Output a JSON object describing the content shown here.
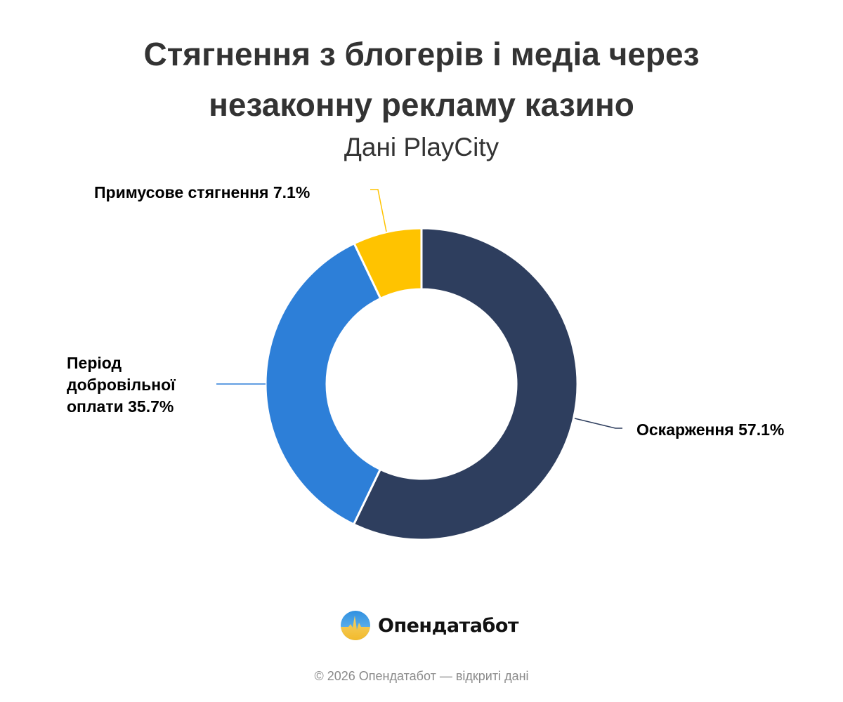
{
  "header": {
    "title_line1": "Стягнення з блогерів і медіа через",
    "title_line2": "незаконну рекламу казино",
    "subtitle": "Дані PlayCity"
  },
  "labels": {
    "navy": "Оскарження 57.1%",
    "blue": "Період добровільної оплати 35.7%",
    "yellow": "Примусове стягнення 7.1%"
  },
  "brand": {
    "name": "Опендатабот",
    "icon": "opendatabot-logo-icon"
  },
  "footer": {
    "text": "© 2026 Опендатабот — відкриті дані"
  },
  "colors": {
    "navy": "#2E3E5E",
    "blue": "#2D7FD8",
    "yellow": "#FFC300",
    "title": "#333333"
  },
  "chart_data": {
    "type": "pie",
    "subtype": "donut",
    "title": "Стягнення з блогерів і медіа через незаконну рекламу казино",
    "subtitle": "Дані PlayCity",
    "categories": [
      "Оскарження",
      "Період добровільної оплати",
      "Примусове стягнення"
    ],
    "values": [
      57.1,
      35.7,
      7.1
    ],
    "unit": "%",
    "colors": [
      "#2E3E5E",
      "#2D7FD8",
      "#FFC300"
    ],
    "start_angle": "top (12 o'clock), clockwise",
    "legend": "none (outside labels with leader lines)"
  }
}
